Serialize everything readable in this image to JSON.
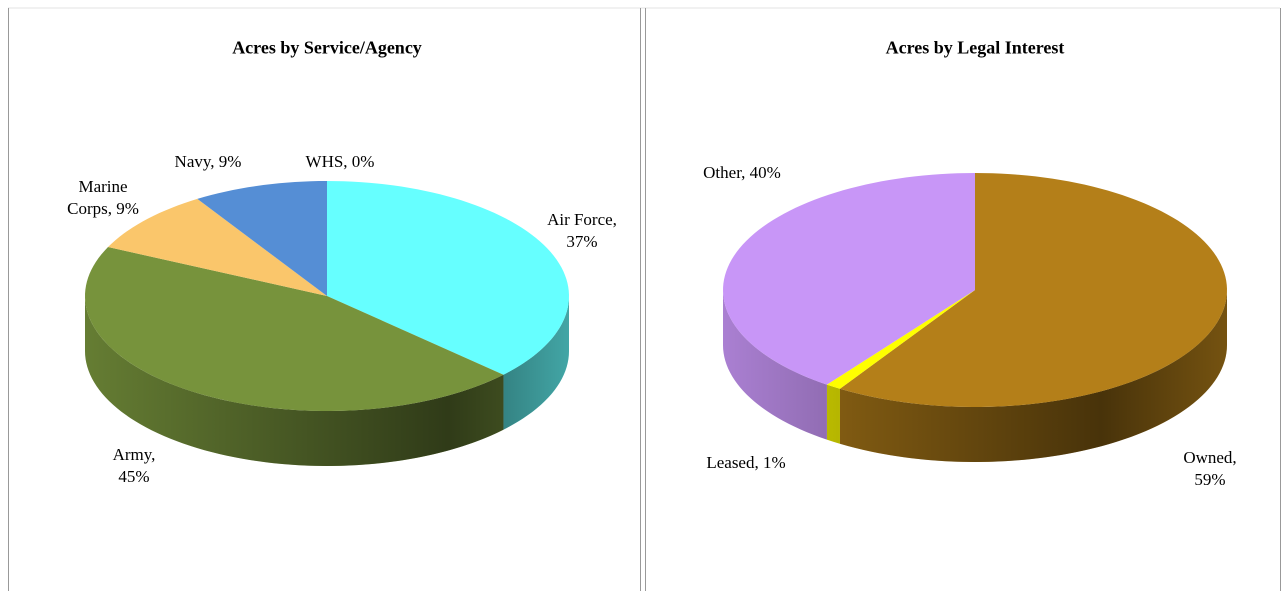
{
  "chart_data": [
    {
      "type": "pie",
      "title": "Acres by Service/Agency",
      "values": [
        37,
        45,
        9,
        9,
        0
      ],
      "value_labels": [
        "Air Force,\n37%",
        "Army,\n45%",
        "Marine\nCorps, 9%",
        "Navy, 9%",
        "WHS, 0%"
      ],
      "colors": [
        "#66ffff",
        "#77933c",
        "#fac66b",
        "#558ed5",
        "#c0504d"
      ]
    },
    {
      "type": "pie",
      "title": "Acres by Legal Interest",
      "values": [
        59,
        1,
        40
      ],
      "value_labels": [
        "Owned,\n59%",
        "Leased, 1%",
        "Other, 40%"
      ],
      "colors": [
        "#b47f19",
        "#ffff00",
        "#c896f7"
      ]
    }
  ]
}
